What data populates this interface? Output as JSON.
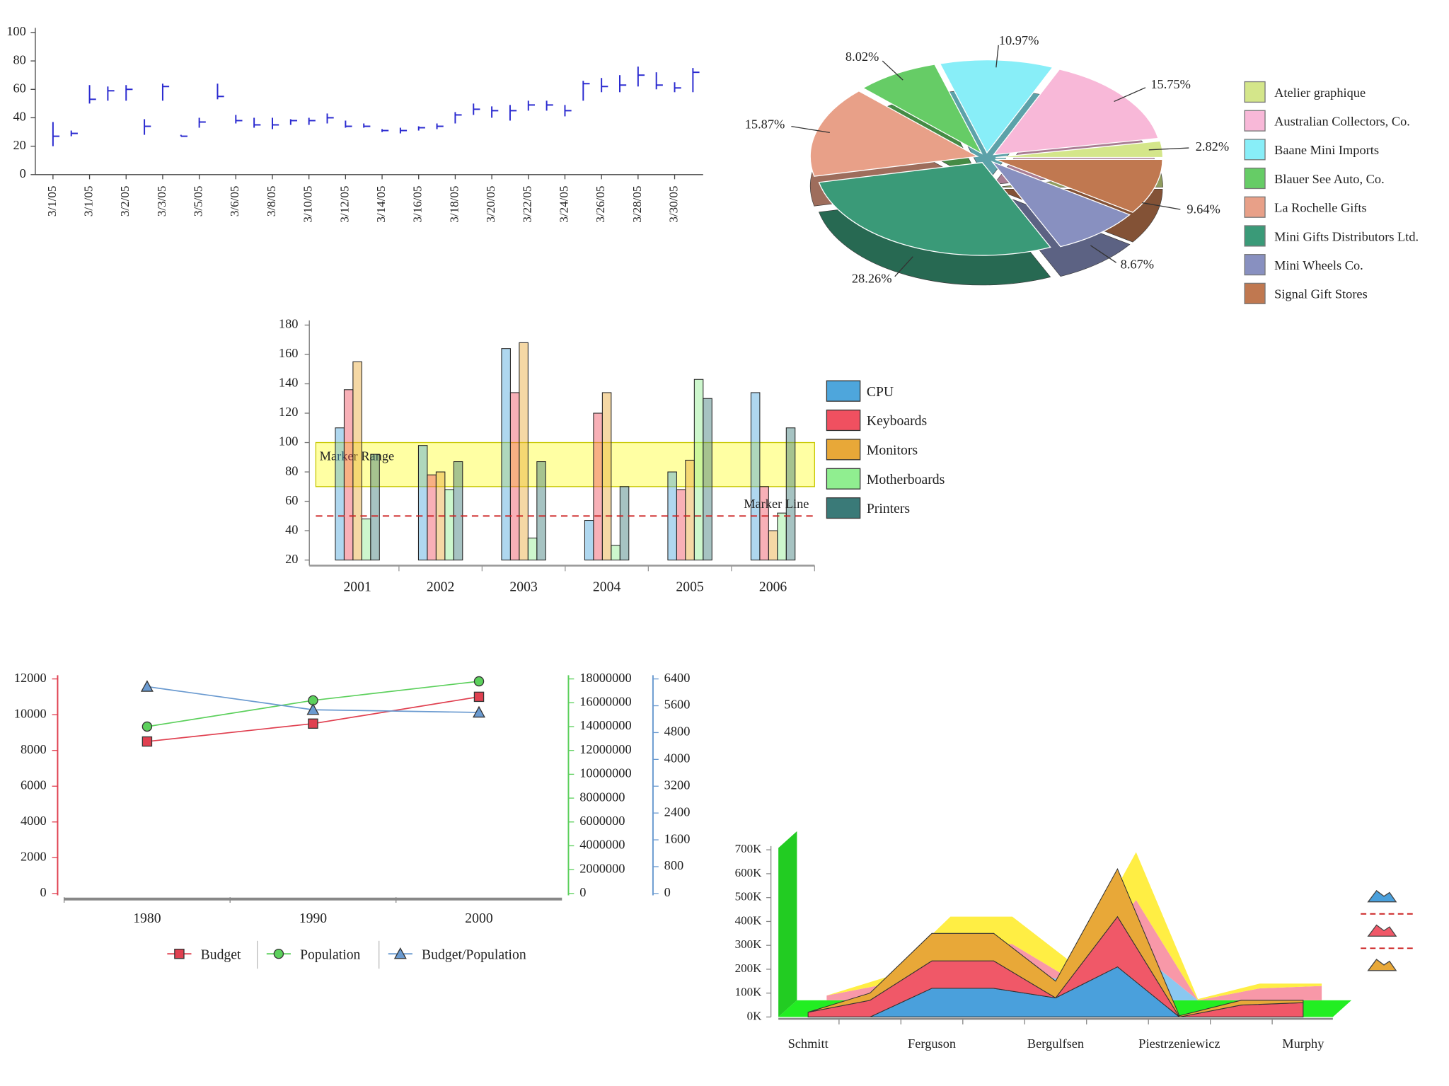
{
  "chart_data": [
    {
      "type": "stock",
      "color": "#2a2ad0",
      "categories": [
        "3/1/05",
        null,
        "3/1/05",
        null,
        "3/2/05",
        null,
        "3/3/05",
        null,
        "3/5/05",
        null,
        "3/6/05",
        null,
        "3/8/05",
        null,
        "3/10/05",
        null,
        "3/12/05",
        null,
        "3/14/05",
        null,
        "3/16/05",
        null,
        "3/18/05",
        null,
        "3/20/05",
        null,
        "3/22/05",
        null,
        "3/24/05",
        null,
        "3/26/05",
        null,
        "3/28/05",
        null,
        "3/30/05",
        null
      ],
      "high": [
        37,
        31,
        63,
        62,
        63,
        39,
        64,
        28,
        40,
        64,
        42,
        40,
        40,
        39,
        40,
        43,
        38,
        36,
        32,
        33,
        34,
        36,
        44,
        50,
        48,
        49,
        52,
        52,
        49,
        66,
        68,
        70,
        76,
        72,
        65,
        75
      ],
      "low": [
        20,
        27,
        50,
        52,
        52,
        28,
        52,
        27,
        33,
        53,
        36,
        33,
        32,
        35,
        35,
        36,
        33,
        33,
        30,
        29,
        31,
        32,
        36,
        42,
        40,
        38,
        45,
        45,
        41,
        52,
        58,
        58,
        62,
        60,
        58,
        58
      ],
      "close": [
        27,
        29,
        53,
        59,
        60,
        34,
        62,
        27,
        37,
        55,
        38,
        35,
        35,
        38,
        38,
        40,
        34,
        34,
        31,
        31,
        33,
        34,
        42,
        46,
        45,
        45,
        49,
        49,
        45,
        64,
        62,
        63,
        70,
        63,
        61,
        72
      ],
      "ylim": [
        0,
        100
      ],
      "yticks": [
        0,
        20,
        40,
        60,
        80,
        100
      ]
    },
    {
      "type": "pie",
      "categories": [
        "Atelier graphique",
        "Australian Collectors, Co.",
        "Baane Mini Imports",
        "Blauer See Auto, Co.",
        "La Rochelle Gifts",
        "Mini Gifts Distributors Ltd.",
        "Mini Wheels Co.",
        "Signal Gift Stores"
      ],
      "values": [
        2.82,
        15.75,
        10.97,
        8.02,
        15.87,
        28.26,
        8.67,
        9.64
      ],
      "value_labels": [
        "2.82%",
        "15.75%",
        "10.97%",
        "8.02%",
        "15.87%",
        "28.26%",
        "8.67%",
        "9.64%"
      ],
      "colors": [
        "#d4e68a",
        "#f8b8d8",
        "#88eef8",
        "#66cc66",
        "#e8a088",
        "#3a9a78",
        "#8890c0",
        "#c07850"
      ]
    },
    {
      "type": "bar",
      "categories": [
        "2001",
        "2002",
        "2003",
        "2004",
        "2005",
        "2006"
      ],
      "series": [
        {
          "name": "CPU",
          "color": "#4ea6dc",
          "values": [
            110,
            98,
            164,
            47,
            80,
            134
          ]
        },
        {
          "name": "Keyboards",
          "color": "#f05060",
          "values": [
            136,
            78,
            134,
            120,
            68,
            70
          ]
        },
        {
          "name": "Monitors",
          "color": "#e8a838",
          "values": [
            155,
            80,
            168,
            134,
            88,
            40
          ]
        },
        {
          "name": "Motherboards",
          "color": "#90ee90",
          "values": [
            48,
            68,
            35,
            30,
            143,
            52
          ]
        },
        {
          "name": "Printers",
          "color": "#3a7a78",
          "values": [
            92,
            87,
            87,
            70,
            130,
            110
          ]
        }
      ],
      "ylim": [
        20,
        180
      ],
      "yticks": [
        20,
        40,
        60,
        80,
        100,
        120,
        140,
        160,
        180
      ],
      "marker_range": {
        "label": "Marker Range",
        "from": 70,
        "to": 100
      },
      "marker_line": {
        "label": "Marker Line",
        "value": 50
      }
    },
    {
      "type": "line",
      "categories": [
        "1980",
        "1990",
        "2000"
      ],
      "series": [
        {
          "name": "Budget",
          "color": "#e04050",
          "marker": "square",
          "axis": "y",
          "values": [
            8500,
            9500,
            11000
          ]
        },
        {
          "name": "Population",
          "color": "#5cd05c",
          "marker": "circle",
          "axis": "y2",
          "values": [
            14000000,
            16200000,
            17800000
          ]
        },
        {
          "name": "Budget/Population",
          "color": "#6a9ad0",
          "marker": "triangle",
          "axis": "y3",
          "values": [
            6170,
            5480,
            5400
          ]
        }
      ],
      "ylim": [
        0,
        12000
      ],
      "yticks": [
        0,
        2000,
        4000,
        6000,
        8000,
        10000,
        12000
      ],
      "y2lim": [
        0,
        18000000
      ],
      "y2ticks": [
        0,
        2000000,
        4000000,
        6000000,
        8000000,
        10000000,
        12000000,
        14000000,
        16000000,
        18000000
      ],
      "y3lim": [
        0,
        6400
      ],
      "y3ticks": [
        0,
        800,
        1600,
        2400,
        3200,
        4000,
        4800,
        5600,
        6400
      ]
    },
    {
      "type": "area",
      "categories": [
        "Schmitt",
        null,
        "Ferguson",
        null,
        "Bergulfsen",
        null,
        "Piestrzeniewicz",
        null,
        "Murphy"
      ],
      "series": [
        {
          "color": "#4aa0dc",
          "depth_color": "#8ac8f0",
          "values": [
            0,
            0,
            120000,
            120000,
            80000,
            210000,
            0,
            0,
            0
          ]
        },
        {
          "color": "#f05868",
          "depth_color": "#f898a8",
          "values": [
            20000,
            70000,
            115000,
            115000,
            0,
            210000,
            0,
            50000,
            60000
          ]
        },
        {
          "color": "#e8a838",
          "depth_color": "#ffee44",
          "values": [
            0,
            30000,
            115000,
            115000,
            70000,
            200000,
            5000,
            20000,
            10000
          ]
        }
      ],
      "ylim": [
        0,
        700000
      ],
      "yticks": [
        {
          "value": 0,
          "label": "0K"
        },
        {
          "value": 100000,
          "label": "100K"
        },
        {
          "value": 200000,
          "label": "200K"
        },
        {
          "value": 300000,
          "label": "300K"
        },
        {
          "value": 400000,
          "label": "400K"
        },
        {
          "value": 500000,
          "label": "500K"
        },
        {
          "value": 600000,
          "label": "600K"
        },
        {
          "value": 700000,
          "label": "700K"
        }
      ]
    }
  ]
}
